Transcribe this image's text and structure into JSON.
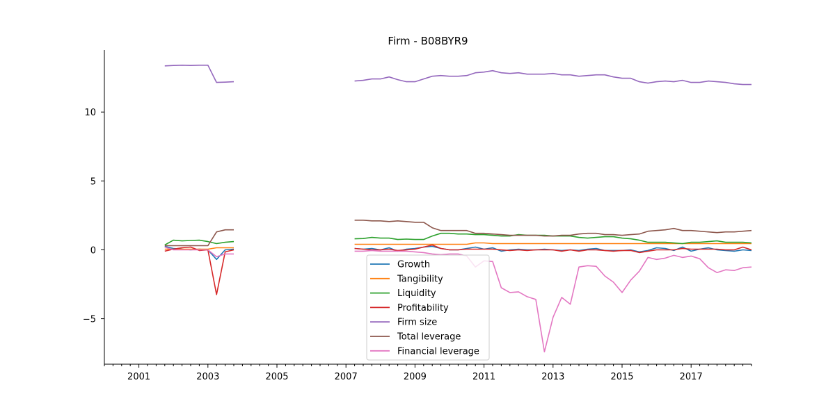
{
  "chart_data": {
    "type": "line",
    "title": "Firm - B08BYR9",
    "xlabel": "",
    "ylabel": "",
    "xlim": [
      2000,
      2018.75
    ],
    "ylim": [
      -8.3,
      14.5
    ],
    "x_ticks": [
      2001,
      2003,
      2005,
      2007,
      2009,
      2011,
      2013,
      2015,
      2017
    ],
    "x_tick_labels": [
      "2001",
      "2003",
      "2005",
      "2007",
      "2009",
      "2011",
      "2013",
      "2015",
      "2017"
    ],
    "y_ticks": [
      -5,
      0,
      5,
      10
    ],
    "y_tick_labels": [
      "−5",
      "0",
      "5",
      "10"
    ],
    "grid": false,
    "legend_position": "lower-center",
    "series": [
      {
        "name": "Growth",
        "color": "#1f77b4",
        "segments": [
          {
            "x": [
              2001.75,
              2002.0,
              2002.25,
              2002.5,
              2002.75,
              2003.0,
              2003.25,
              2003.5,
              2003.75
            ],
            "y": [
              0.25,
              0.1,
              0.05,
              0.0,
              0.05,
              0.0,
              -0.7,
              0.0,
              0.05
            ]
          },
          {
            "x": [
              2007.25,
              2007.5,
              2007.75,
              2008.0,
              2008.25,
              2008.5,
              2008.75,
              2009.0,
              2009.25,
              2009.5,
              2009.75,
              2010.0,
              2010.25,
              2010.5,
              2010.75,
              2011.0,
              2011.25,
              2011.5,
              2011.75,
              2012.0,
              2012.25,
              2012.5,
              2012.75,
              2013.0,
              2013.25,
              2013.5,
              2013.75,
              2014.0,
              2014.25,
              2014.5,
              2014.75,
              2015.0,
              2015.25,
              2015.5,
              2015.75,
              2016.0,
              2016.25,
              2016.5,
              2016.75,
              2017.0,
              2017.25,
              2017.5,
              2017.75,
              2018.0,
              2018.25,
              2018.5,
              2018.75
            ],
            "y": [
              0.1,
              0.05,
              0.1,
              0.0,
              0.15,
              -0.1,
              0.05,
              0.1,
              0.2,
              0.25,
              0.1,
              0.0,
              0.0,
              0.1,
              0.2,
              0.05,
              0.15,
              -0.1,
              0.0,
              0.05,
              0.0,
              0.0,
              0.05,
              0.0,
              -0.05,
              0.0,
              -0.05,
              0.05,
              0.1,
              -0.05,
              -0.05,
              -0.05,
              0.0,
              -0.15,
              -0.05,
              0.15,
              0.1,
              -0.05,
              0.2,
              -0.1,
              0.05,
              0.15,
              0.0,
              -0.05,
              -0.1,
              0.0,
              -0.05
            ]
          }
        ]
      },
      {
        "name": "Tangibility",
        "color": "#ff7f0e",
        "segments": [
          {
            "x": [
              2001.75,
              2002.0,
              2002.25,
              2002.5,
              2002.75,
              2003.0,
              2003.25,
              2003.5,
              2003.75
            ],
            "y": [
              0.05,
              0.05,
              0.05,
              0.05,
              0.05,
              0.05,
              0.15,
              0.15,
              0.15
            ]
          },
          {
            "x": [
              2007.25,
              2007.5,
              2007.75,
              2008.0,
              2008.25,
              2008.5,
              2008.75,
              2009.0,
              2009.25,
              2009.5,
              2009.75,
              2010.0,
              2010.25,
              2010.5,
              2010.75,
              2011.0,
              2011.25,
              2011.5,
              2011.75,
              2012.0,
              2012.25,
              2012.5,
              2012.75,
              2013.0,
              2013.25,
              2013.5,
              2013.75,
              2014.0,
              2014.25,
              2014.5,
              2014.75,
              2015.0,
              2015.25,
              2015.5,
              2015.75,
              2016.0,
              2016.25,
              2016.5,
              2016.75,
              2017.0,
              2017.25,
              2017.5,
              2017.75,
              2018.0,
              2018.25,
              2018.5,
              2018.75
            ],
            "y": [
              0.4,
              0.4,
              0.4,
              0.4,
              0.4,
              0.4,
              0.4,
              0.4,
              0.4,
              0.4,
              0.4,
              0.4,
              0.4,
              0.4,
              0.5,
              0.5,
              0.45,
              0.45,
              0.45,
              0.45,
              0.45,
              0.45,
              0.45,
              0.45,
              0.45,
              0.45,
              0.45,
              0.45,
              0.45,
              0.45,
              0.45,
              0.45,
              0.45,
              0.45,
              0.45,
              0.45,
              0.45,
              0.45,
              0.45,
              0.45,
              0.45,
              0.45,
              0.45,
              0.45,
              0.45,
              0.45,
              0.45
            ]
          }
        ]
      },
      {
        "name": "Liquidity",
        "color": "#2ca02c",
        "segments": [
          {
            "x": [
              2001.75,
              2002.0,
              2002.25,
              2002.5,
              2002.75,
              2003.0,
              2003.25,
              2003.5,
              2003.75
            ],
            "y": [
              0.35,
              0.7,
              0.65,
              0.68,
              0.7,
              0.6,
              0.45,
              0.55,
              0.6
            ]
          },
          {
            "x": [
              2007.25,
              2007.5,
              2007.75,
              2008.0,
              2008.25,
              2008.5,
              2008.75,
              2009.0,
              2009.25,
              2009.5,
              2009.75,
              2010.0,
              2010.25,
              2010.5,
              2010.75,
              2011.0,
              2011.25,
              2011.5,
              2011.75,
              2012.0,
              2012.25,
              2012.5,
              2012.75,
              2013.0,
              2013.25,
              2013.5,
              2013.75,
              2014.0,
              2014.25,
              2014.5,
              2014.75,
              2015.0,
              2015.25,
              2015.5,
              2015.75,
              2016.0,
              2016.25,
              2016.5,
              2016.75,
              2017.0,
              2017.25,
              2017.5,
              2017.75,
              2018.0,
              2018.25,
              2018.5,
              2018.75
            ],
            "y": [
              0.8,
              0.82,
              0.9,
              0.85,
              0.85,
              0.75,
              0.78,
              0.75,
              0.75,
              1.0,
              1.2,
              1.2,
              1.15,
              1.15,
              1.1,
              1.1,
              1.05,
              1.0,
              1.0,
              1.1,
              1.05,
              1.05,
              1.05,
              1.0,
              1.0,
              1.0,
              0.9,
              0.85,
              0.9,
              0.95,
              0.95,
              0.85,
              0.8,
              0.7,
              0.55,
              0.55,
              0.55,
              0.5,
              0.45,
              0.55,
              0.55,
              0.6,
              0.65,
              0.55,
              0.55,
              0.55,
              0.5
            ]
          }
        ]
      },
      {
        "name": "Profitability",
        "color": "#d62728",
        "segments": [
          {
            "x": [
              2001.75,
              2002.0,
              2002.25,
              2002.5,
              2002.75,
              2003.0,
              2003.25,
              2003.5,
              2003.75
            ],
            "y": [
              -0.1,
              0.05,
              0.15,
              0.2,
              -0.05,
              0.0,
              -3.25,
              -0.15,
              0.0
            ]
          },
          {
            "x": [
              2007.25,
              2007.5,
              2007.75,
              2008.0,
              2008.25,
              2008.5,
              2008.75,
              2009.0,
              2009.25,
              2009.5,
              2009.75,
              2010.0,
              2010.25,
              2010.5,
              2010.75,
              2011.0,
              2011.25,
              2011.5,
              2011.75,
              2012.0,
              2012.25,
              2012.5,
              2012.75,
              2013.0,
              2013.25,
              2013.5,
              2013.75,
              2014.0,
              2014.25,
              2014.5,
              2014.75,
              2015.0,
              2015.25,
              2015.5,
              2015.75,
              2016.0,
              2016.25,
              2016.5,
              2016.75,
              2017.0,
              2017.25,
              2017.5,
              2017.75,
              2018.0,
              2018.25,
              2018.5,
              2018.75
            ],
            "y": [
              0.1,
              0.05,
              0.0,
              0.0,
              0.05,
              -0.05,
              0.0,
              0.05,
              0.2,
              0.35,
              0.1,
              0.0,
              0.0,
              0.05,
              0.05,
              0.05,
              0.05,
              0.0,
              -0.05,
              0.0,
              -0.05,
              0.0,
              0.0,
              0.0,
              -0.1,
              0.0,
              -0.1,
              0.0,
              0.0,
              -0.05,
              -0.1,
              -0.05,
              -0.05,
              -0.2,
              -0.1,
              0.0,
              0.0,
              0.0,
              0.1,
              0.05,
              0.05,
              0.05,
              0.05,
              0.0,
              0.0,
              0.2,
              0.0
            ]
          }
        ]
      },
      {
        "name": "Firm size",
        "color": "#9467bd",
        "segments": [
          {
            "x": [
              2001.75,
              2002.0,
              2002.25,
              2002.5,
              2002.75,
              2003.0,
              2003.25,
              2003.5,
              2003.75
            ],
            "y": [
              13.35,
              13.38,
              13.4,
              13.38,
              13.4,
              13.4,
              12.15,
              12.17,
              12.2
            ]
          },
          {
            "x": [
              2007.25,
              2007.5,
              2007.75,
              2008.0,
              2008.25,
              2008.5,
              2008.75,
              2009.0,
              2009.25,
              2009.5,
              2009.75,
              2010.0,
              2010.25,
              2010.5,
              2010.75,
              2011.0,
              2011.25,
              2011.5,
              2011.75,
              2012.0,
              2012.25,
              2012.5,
              2012.75,
              2013.0,
              2013.25,
              2013.5,
              2013.75,
              2014.0,
              2014.25,
              2014.5,
              2014.75,
              2015.0,
              2015.25,
              2015.5,
              2015.75,
              2016.0,
              2016.25,
              2016.5,
              2016.75,
              2017.0,
              2017.25,
              2017.5,
              2017.75,
              2018.0,
              2018.25,
              2018.5,
              2018.75
            ],
            "y": [
              12.25,
              12.3,
              12.4,
              12.4,
              12.55,
              12.35,
              12.2,
              12.2,
              12.4,
              12.6,
              12.65,
              12.6,
              12.6,
              12.65,
              12.85,
              12.9,
              13.0,
              12.85,
              12.8,
              12.85,
              12.75,
              12.75,
              12.75,
              12.8,
              12.7,
              12.7,
              12.6,
              12.65,
              12.7,
              12.7,
              12.55,
              12.45,
              12.45,
              12.2,
              12.1,
              12.2,
              12.25,
              12.2,
              12.3,
              12.15,
              12.15,
              12.25,
              12.2,
              12.15,
              12.05,
              12.0,
              12.0
            ]
          }
        ]
      },
      {
        "name": "Total leverage",
        "color": "#8c564b",
        "segments": [
          {
            "x": [
              2001.75,
              2002.0,
              2002.25,
              2002.5,
              2002.75,
              2003.0,
              2003.25,
              2003.5,
              2003.75
            ],
            "y": [
              0.3,
              0.3,
              0.3,
              0.3,
              0.3,
              0.3,
              1.3,
              1.45,
              1.45
            ]
          },
          {
            "x": [
              2007.25,
              2007.5,
              2007.75,
              2008.0,
              2008.25,
              2008.5,
              2008.75,
              2009.0,
              2009.25,
              2009.5,
              2009.75,
              2010.0,
              2010.25,
              2010.5,
              2010.75,
              2011.0,
              2011.25,
              2011.5,
              2011.75,
              2012.0,
              2012.25,
              2012.5,
              2012.75,
              2013.0,
              2013.25,
              2013.5,
              2013.75,
              2014.0,
              2014.25,
              2014.5,
              2014.75,
              2015.0,
              2015.25,
              2015.5,
              2015.75,
              2016.0,
              2016.25,
              2016.5,
              2016.75,
              2017.0,
              2017.25,
              2017.5,
              2017.75,
              2018.0,
              2018.25,
              2018.5,
              2018.75
            ],
            "y": [
              2.15,
              2.15,
              2.1,
              2.1,
              2.05,
              2.1,
              2.05,
              2.0,
              2.0,
              1.6,
              1.4,
              1.4,
              1.4,
              1.4,
              1.2,
              1.2,
              1.15,
              1.1,
              1.05,
              1.05,
              1.05,
              1.05,
              1.0,
              1.0,
              1.05,
              1.05,
              1.15,
              1.2,
              1.2,
              1.1,
              1.1,
              1.05,
              1.1,
              1.15,
              1.35,
              1.4,
              1.45,
              1.55,
              1.4,
              1.4,
              1.35,
              1.3,
              1.25,
              1.3,
              1.3,
              1.35,
              1.4
            ]
          }
        ]
      },
      {
        "name": "Financial leverage",
        "color": "#e377c2",
        "segments": [
          {
            "x": [
              2001.75,
              2002.0,
              2002.25,
              2002.5,
              2002.75,
              2003.0,
              2003.25,
              2003.5,
              2003.75
            ],
            "y": [
              0.2,
              0.0,
              0.0,
              0.0,
              0.0,
              0.0,
              -0.5,
              -0.3,
              -0.3
            ]
          },
          {
            "x": [
              2007.25,
              2007.5,
              2007.75,
              2008.0,
              2008.25,
              2008.5,
              2008.75,
              2009.0,
              2009.25,
              2009.5,
              2009.75,
              2010.0,
              2010.25,
              2010.5,
              2010.75,
              2011.0,
              2011.25,
              2011.5,
              2011.75,
              2012.0,
              2012.25,
              2012.5,
              2012.75,
              2013.0,
              2013.25,
              2013.5,
              2013.75,
              2014.0,
              2014.25,
              2014.5,
              2014.75,
              2015.0,
              2015.25,
              2015.5,
              2015.75,
              2016.0,
              2016.25,
              2016.5,
              2016.75,
              2017.0,
              2017.25,
              2017.5,
              2017.75,
              2018.0,
              2018.25,
              2018.5,
              2018.75
            ],
            "y": [
              -0.1,
              -0.1,
              -0.05,
              -0.1,
              -0.1,
              -0.1,
              -0.1,
              -0.15,
              -0.2,
              -0.3,
              -0.35,
              -0.3,
              -0.3,
              -0.45,
              -1.25,
              -0.8,
              -0.85,
              -2.75,
              -3.1,
              -3.05,
              -3.4,
              -3.6,
              -7.4,
              -4.9,
              -3.45,
              -3.95,
              -1.25,
              -1.15,
              -1.2,
              -1.9,
              -2.35,
              -3.1,
              -2.2,
              -1.55,
              -0.55,
              -0.7,
              -0.6,
              -0.4,
              -0.55,
              -0.45,
              -0.65,
              -1.3,
              -1.65,
              -1.45,
              -1.5,
              -1.3,
              -1.25
            ]
          }
        ]
      }
    ]
  }
}
